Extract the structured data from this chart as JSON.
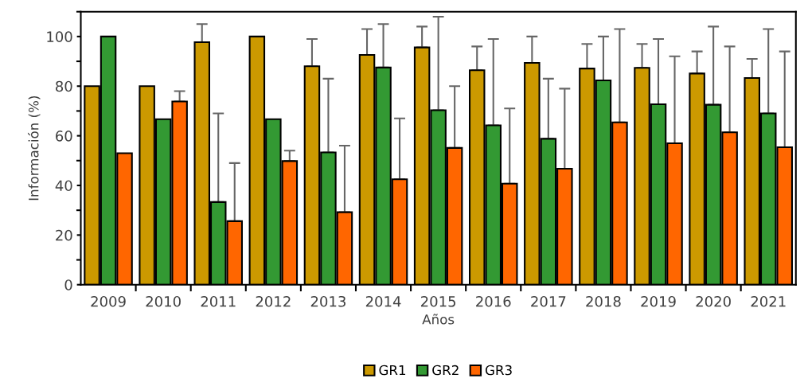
{
  "chart_data": {
    "type": "bar",
    "xlabel": "Años",
    "ylabel": "Información (%)",
    "categories": [
      "2009",
      "2010",
      "2011",
      "2012",
      "2013",
      "2014",
      "2015",
      "2016",
      "2017",
      "2018",
      "2019",
      "2020",
      "2021"
    ],
    "series": [
      {
        "name": "GR1",
        "color": "#cc9900",
        "values": [
          80,
          80,
          97.7,
          100,
          88,
          92.6,
          95.6,
          86.4,
          89.4,
          87.1,
          87.4,
          85.1,
          83.3
        ],
        "errors": [
          null,
          null,
          [
            97.7,
            105
          ],
          null,
          [
            88,
            99
          ],
          [
            92.6,
            103
          ],
          [
            95.6,
            104
          ],
          [
            86.4,
            96
          ],
          [
            89.4,
            100
          ],
          [
            87.1,
            97
          ],
          [
            87.4,
            97
          ],
          [
            85.1,
            94
          ],
          [
            83.3,
            91
          ]
        ]
      },
      {
        "name": "GR2",
        "color": "#339933",
        "values": [
          100,
          66.7,
          33.3,
          66.7,
          53.3,
          87.5,
          70.3,
          64.2,
          58.8,
          82.3,
          72.7,
          72.5,
          69
        ],
        "errors": [
          null,
          null,
          [
            33.3,
            69
          ],
          null,
          [
            53.3,
            83
          ],
          [
            87.5,
            105
          ],
          [
            70.3,
            108
          ],
          [
            64.2,
            99
          ],
          [
            58.8,
            83
          ],
          [
            82.3,
            100
          ],
          [
            72.7,
            99
          ],
          [
            72.5,
            104
          ],
          [
            69,
            103
          ]
        ]
      },
      {
        "name": "GR3",
        "color": "#ff6600",
        "values": [
          53,
          73.8,
          25.6,
          49.8,
          29.2,
          42.5,
          55.1,
          40.7,
          46.7,
          65.4,
          57,
          61.4,
          55.4
        ],
        "errors": [
          null,
          [
            73.8,
            78
          ],
          [
            25.6,
            49
          ],
          [
            49.8,
            54
          ],
          [
            29.2,
            56
          ],
          [
            42.5,
            67
          ],
          [
            55.1,
            80
          ],
          [
            40.7,
            71
          ],
          [
            46.7,
            79
          ],
          [
            65.4,
            103
          ],
          [
            57,
            92
          ],
          [
            61.4,
            96
          ],
          [
            55.4,
            94
          ]
        ]
      }
    ],
    "ylim": [
      0,
      110
    ],
    "yticks": [
      0,
      20,
      40,
      60,
      80,
      100
    ],
    "grid": false,
    "legend": "bottom"
  }
}
